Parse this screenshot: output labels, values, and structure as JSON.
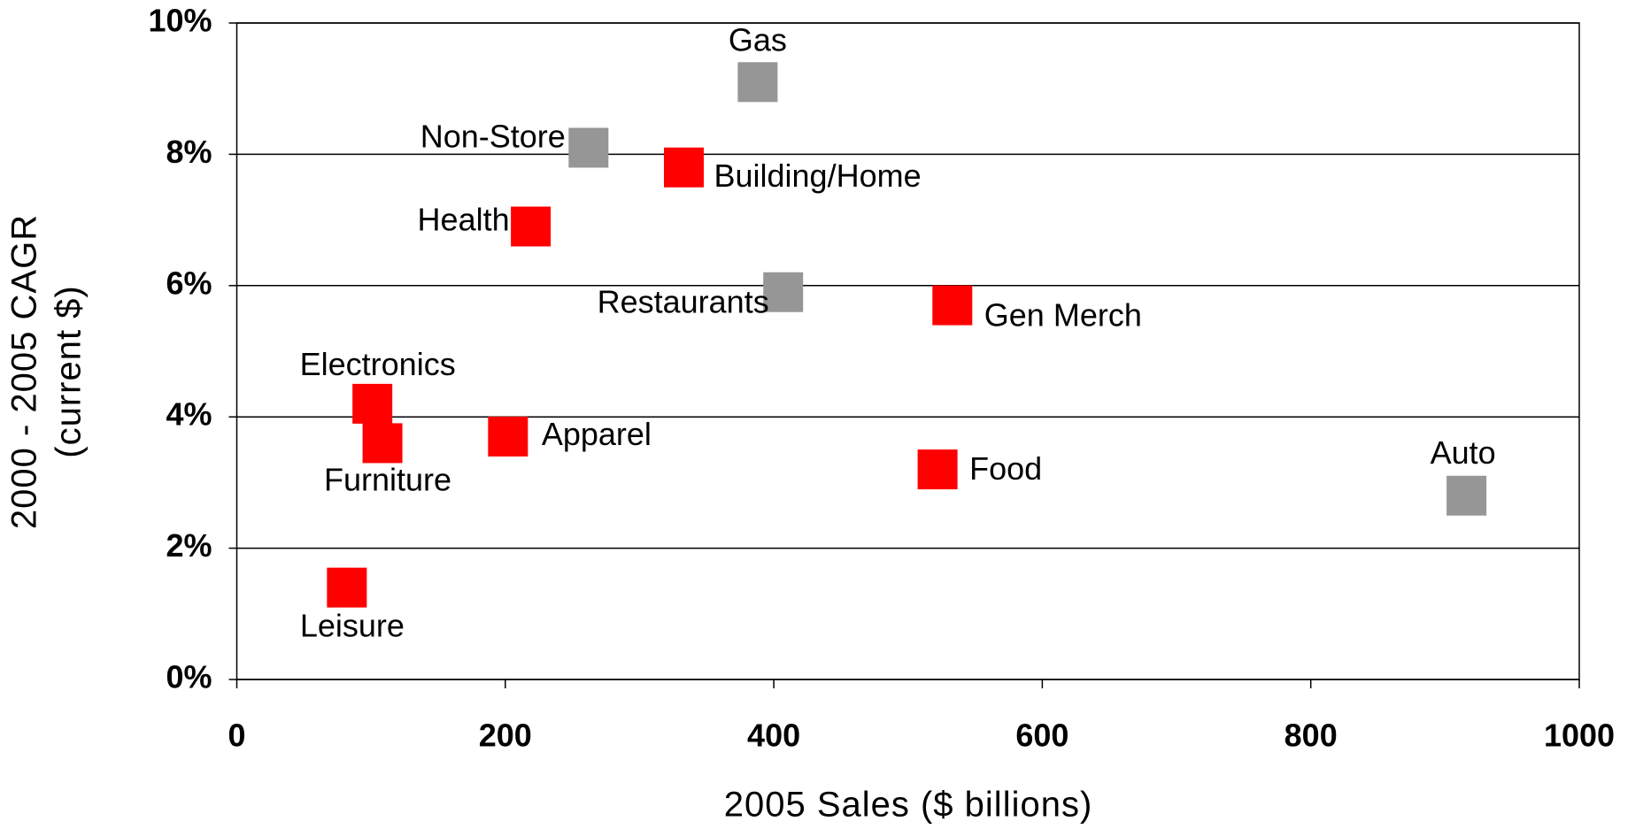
{
  "chart_data": {
    "type": "scatter",
    "xlabel": "2005 Sales ($ billions)",
    "ylabel": [
      "2000 - 2005 CAGR",
      "(current $)"
    ],
    "points": [
      {
        "label": "Gas",
        "x": 388,
        "y": 9.1,
        "color": "#969696"
      },
      {
        "label": "Non-Store",
        "x": 262,
        "y": 8.1,
        "color": "#969696"
      },
      {
        "label": "Building/Home",
        "x": 333,
        "y": 7.8,
        "color": "#ff0000"
      },
      {
        "label": "Health",
        "x": 219,
        "y": 6.9,
        "color": "#ff0000"
      },
      {
        "label": "Restaurants",
        "x": 407,
        "y": 5.9,
        "color": "#969696"
      },
      {
        "label": "Gen Merch",
        "x": 533,
        "y": 5.7,
        "color": "#ff0000"
      },
      {
        "label": "Electronics",
        "x": 101,
        "y": 4.2,
        "color": "#ff0000"
      },
      {
        "label": "Furniture",
        "x": 108.5,
        "y": 3.6,
        "color": "#ff0000"
      },
      {
        "label": "Apparel",
        "x": 202,
        "y": 3.7,
        "color": "#ff0000"
      },
      {
        "label": "Food",
        "x": 522,
        "y": 3.2,
        "color": "#ff0000"
      },
      {
        "label": "Auto",
        "x": 916,
        "y": 2.8,
        "color": "#969696"
      },
      {
        "label": "Leisure",
        "x": 82,
        "y": 1.4,
        "color": "#ff0000"
      }
    ],
    "xlim": [
      0,
      1000
    ],
    "xticks": [
      0,
      200,
      400,
      600,
      800,
      1000
    ],
    "ylim": [
      0,
      10
    ],
    "yticks": [
      {
        "value": 0,
        "label": "0%"
      },
      {
        "value": 2,
        "label": "2%"
      },
      {
        "value": 4,
        "label": "4%"
      },
      {
        "value": 6,
        "label": "6%"
      },
      {
        "value": 8,
        "label": "8%"
      },
      {
        "value": 10,
        "label": "10%"
      }
    ],
    "grid": true
  }
}
